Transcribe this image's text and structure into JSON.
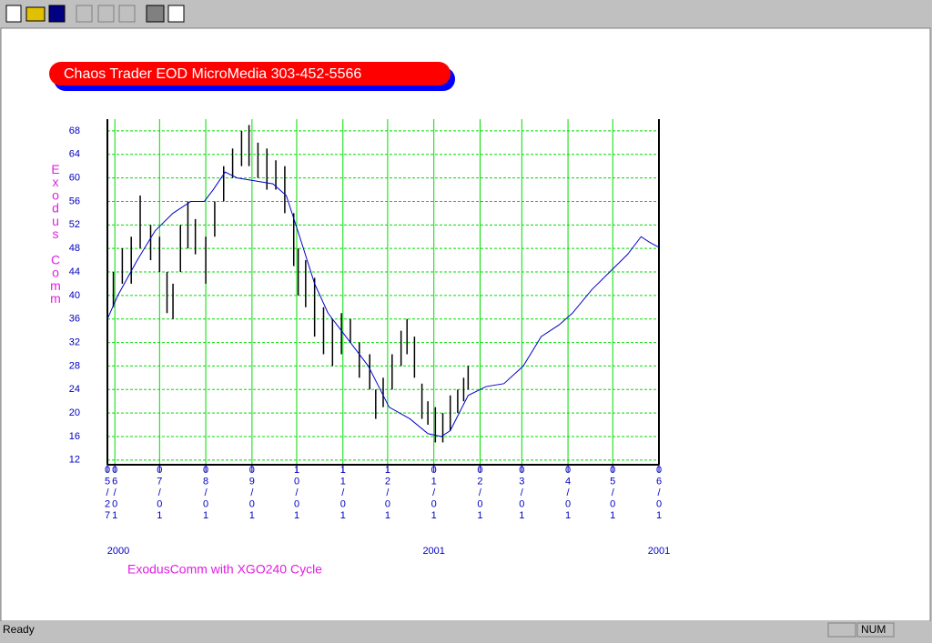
{
  "status_bar": {
    "text": "Ready",
    "indicator": "NUM"
  },
  "chart_data": {
    "type": "combo",
    "title": "Chaos Trader EOD MicroMedia 303-452-5566",
    "y_label": "Exodus Comm",
    "x_label": "ExodusComm with  XGO240 Cycle",
    "xlim": [
      0,
      370
    ],
    "ylim": [
      11.2,
      70
    ],
    "yticks": [
      12,
      16,
      20,
      24,
      28,
      32,
      36,
      40,
      44,
      48,
      52,
      56,
      60,
      64,
      68
    ],
    "xticks": [
      {
        "value": 0,
        "label": "05/27"
      },
      {
        "value": 5,
        "label": "06/01"
      },
      {
        "value": 35,
        "label": "07/01"
      },
      {
        "value": 66,
        "label": "08/01"
      },
      {
        "value": 97,
        "label": "09/01"
      },
      {
        "value": 127,
        "label": "10/01"
      },
      {
        "value": 158,
        "label": "11/01"
      },
      {
        "value": 188,
        "label": "12/01"
      },
      {
        "value": 219,
        "label": "01/01"
      },
      {
        "value": 250,
        "label": "02/01"
      },
      {
        "value": 278,
        "label": "03/01"
      },
      {
        "value": 309,
        "label": "04/01"
      },
      {
        "value": 339,
        "label": "05/01"
      },
      {
        "value": 370,
        "label": "06/01"
      }
    ],
    "year_labels": [
      {
        "value": 0,
        "label": "2000"
      },
      {
        "value": 219,
        "label": "2001"
      },
      {
        "value": 370,
        "label": "2001"
      }
    ],
    "grid": true,
    "grid_color": "#00dd00",
    "series": [
      {
        "type": "range-bar",
        "color": "#000000",
        "x": [
          0,
          4,
          10,
          16,
          22,
          29,
          35,
          40,
          44,
          49,
          54,
          59,
          66,
          72,
          78,
          84,
          90,
          95,
          101,
          107,
          113,
          119,
          125,
          128,
          133,
          139,
          145,
          151,
          157,
          163,
          169,
          176,
          180,
          185,
          191,
          197,
          201,
          206,
          211,
          215,
          220,
          225,
          230,
          235,
          239,
          242
        ],
        "low": [
          33,
          38,
          42,
          42,
          48,
          46,
          44,
          37,
          36,
          44,
          48,
          47,
          42,
          50,
          56,
          60,
          62,
          62,
          60,
          58,
          58,
          54,
          45,
          40,
          38,
          33,
          30,
          28,
          30,
          32,
          26,
          24,
          19,
          21,
          24,
          28,
          30,
          26,
          19,
          18,
          15,
          15,
          17,
          20,
          22,
          24
        ],
        "high": [
          38,
          44,
          48,
          50,
          57,
          52,
          50,
          44,
          42,
          52,
          56,
          53,
          50,
          56,
          62,
          65,
          68,
          69,
          66,
          65,
          63,
          62,
          54,
          48,
          46,
          43,
          38,
          36,
          37,
          36,
          32,
          30,
          24,
          26,
          30,
          34,
          36,
          33,
          25,
          22,
          21,
          20,
          23,
          24,
          26,
          28
        ]
      },
      {
        "type": "line",
        "color": "#0000cc",
        "x": [
          0,
          7,
          20,
          32,
          44,
          56,
          65,
          71,
          79,
          87,
          99,
          111,
          120,
          129,
          139,
          148,
          157,
          166,
          175,
          181,
          189,
          203,
          215,
          224,
          230,
          236,
          242,
          254,
          266,
          279,
          291,
          303,
          312,
          325,
          337,
          349,
          358,
          364,
          370
        ],
        "values": [
          36,
          40,
          46,
          51,
          54,
          56,
          56,
          58,
          61,
          60,
          59.5,
          59,
          57,
          50,
          42,
          37,
          34,
          31,
          28,
          25,
          21,
          19,
          16.5,
          16,
          17,
          20,
          23,
          24.5,
          25,
          28,
          33,
          35,
          37,
          41,
          44,
          47,
          50,
          49,
          48.2
        ]
      }
    ]
  }
}
